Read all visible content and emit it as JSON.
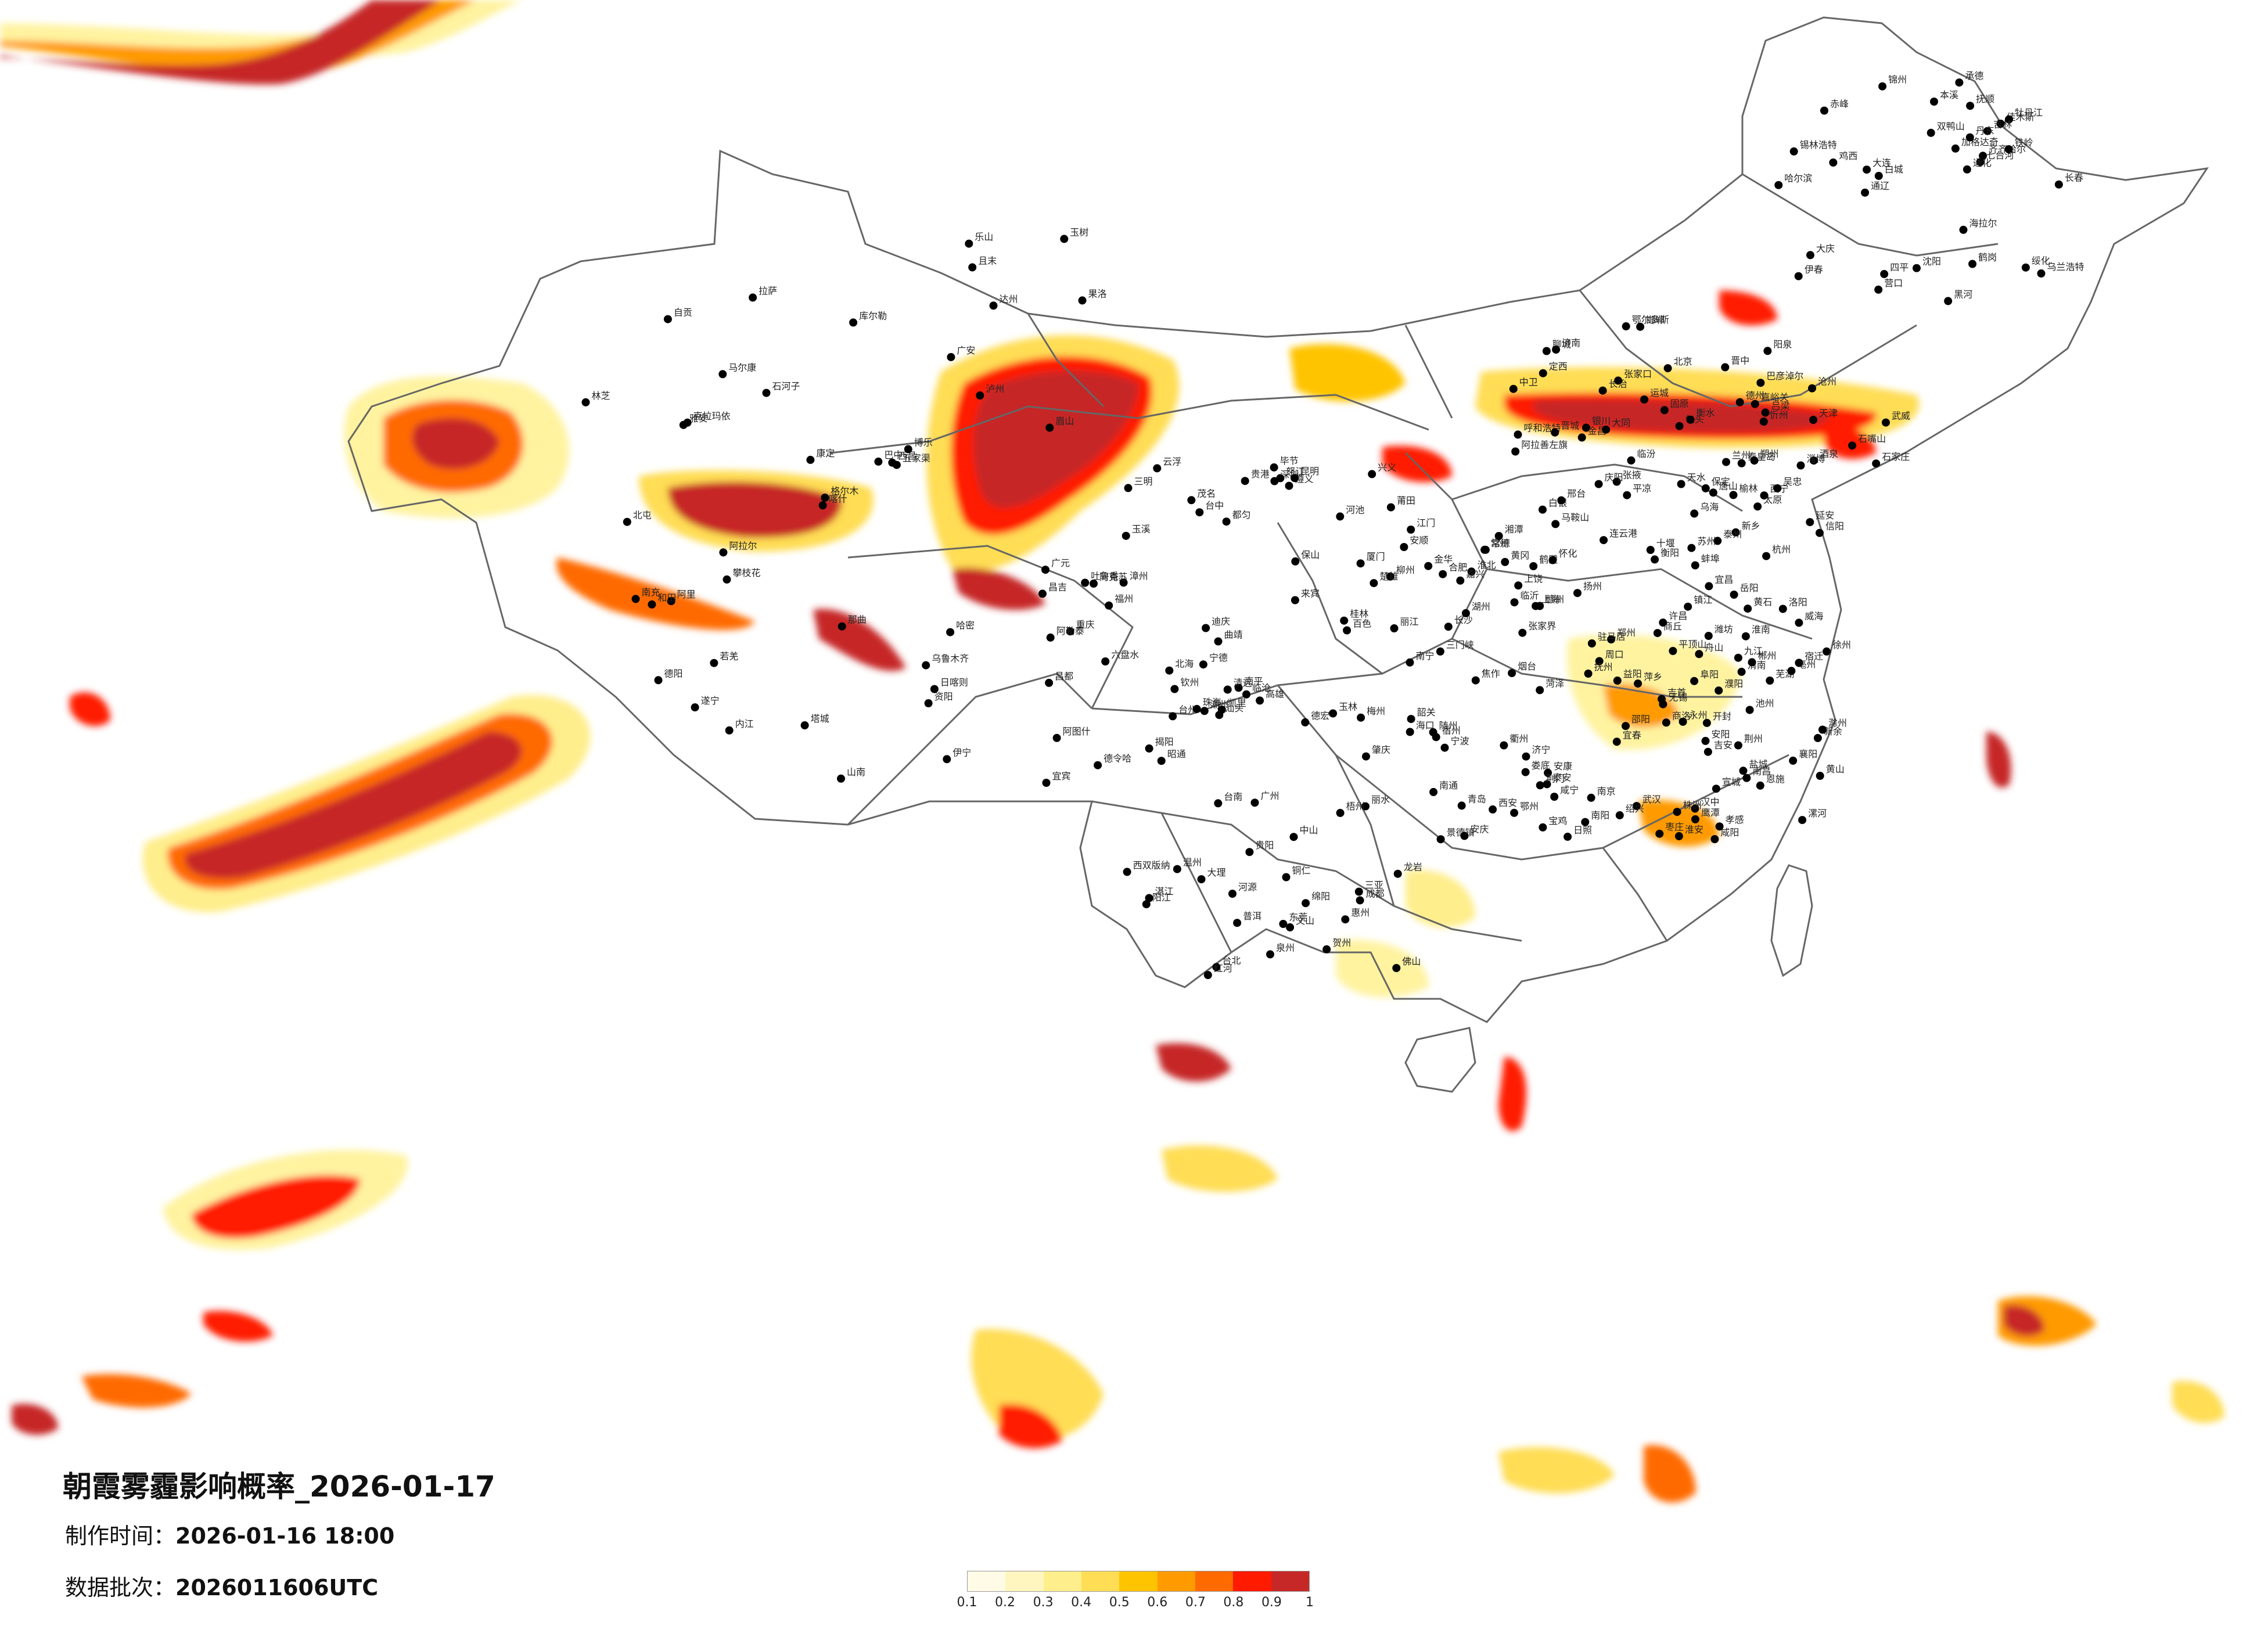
{
  "title": "朝霞雾霾影响概率_2026-01-17",
  "production_time": {
    "label": "制作时间：",
    "value": "2026-01-16 18:00"
  },
  "data_batch": {
    "label": "数据批次：",
    "value": "2026011606UTC"
  },
  "legend": {
    "colors": [
      "#fffbe6",
      "#fff6bf",
      "#ffee8c",
      "#ffdd55",
      "#ffc400",
      "#ff9a00",
      "#ff6a00",
      "#ff1a00",
      "#c62828"
    ],
    "ticks": [
      "0.1",
      "0.2",
      "0.3",
      "0.4",
      "0.5",
      "0.6",
      "0.7",
      "0.8",
      "0.9",
      "1"
    ]
  },
  "cities": [
    "加格达奇",
    "黑河",
    "海拉尔",
    "伊春",
    "鹤岗",
    "齐齐哈尔",
    "佳木斯",
    "双鸭山",
    "大庆",
    "绥化",
    "哈尔滨",
    "七台河",
    "鸡西",
    "乌兰浩特",
    "白城",
    "牡丹江",
    "锡林浩特",
    "通辽",
    "长春",
    "吉林",
    "四平",
    "铁岭",
    "沈阳",
    "抚顺",
    "本溪",
    "通化",
    "丹东",
    "大连",
    "营口",
    "锦州",
    "赤峰",
    "承德",
    "张家口",
    "北京",
    "天津",
    "唐山",
    "秦皇岛",
    "呼和浩特",
    "包头",
    "巴彦淖尔",
    "乌海",
    "银川",
    "石嘴山",
    "阿拉善左旗",
    "嘉峪关",
    "酒泉",
    "张掖",
    "武威",
    "金昌",
    "西宁",
    "兰州",
    "白银",
    "定西",
    "天水",
    "平凉",
    "庆阳",
    "固原",
    "中卫",
    "吴忠",
    "延安",
    "榆林",
    "鄂尔多斯",
    "大同",
    "朔州",
    "忻州",
    "太原",
    "阳泉",
    "晋中",
    "吕梁",
    "临汾",
    "运城",
    "长治",
    "晋城",
    "石家庄",
    "保定",
    "沧州",
    "衡水",
    "邢台",
    "邯郸",
    "德州",
    "聊城",
    "济南",
    "淄博",
    "潍坊",
    "烟台",
    "威海",
    "青岛",
    "日照",
    "临沂",
    "枣庄",
    "济宁",
    "泰安",
    "菏泽",
    "濮阳",
    "安阳",
    "鹤壁",
    "新乡",
    "焦作",
    "郑州",
    "开封",
    "商丘",
    "周口",
    "许昌",
    "漯河",
    "平顶山",
    "洛阳",
    "三门峡",
    "南阳",
    "信阳",
    "驻马店",
    "西安",
    "宝鸡",
    "咸阳",
    "渭南",
    "汉中",
    "安康",
    "商洛",
    "十堰",
    "襄阳",
    "随州",
    "荆门",
    "孝感",
    "武汉",
    "黄冈",
    "鄂州",
    "黄石",
    "咸宁",
    "荆州",
    "宜昌",
    "恩施",
    "岳阳",
    "常德",
    "张家界",
    "益阳",
    "长沙",
    "株洲",
    "湘潭",
    "娄底",
    "邵阳",
    "衡阳",
    "郴州",
    "永州",
    "怀化",
    "吉首",
    "九江",
    "景德镇",
    "南昌",
    "上饶",
    "鹰潭",
    "抚州",
    "新余",
    "宜春",
    "萍乡",
    "吉安",
    "赣州",
    "合肥",
    "芜湖",
    "马鞍山",
    "安庆",
    "池州",
    "黄山",
    "宣城",
    "滁州",
    "蚌埠",
    "淮南",
    "阜阳",
    "亳州",
    "宿州",
    "淮北",
    "徐州",
    "连云港",
    "宿迁",
    "淮安",
    "盐城",
    "扬州",
    "泰州",
    "南通",
    "南京",
    "镇江",
    "常州",
    "无锡",
    "苏州",
    "上海",
    "嘉兴",
    "湖州",
    "杭州",
    "绍兴",
    "宁波",
    "舟山",
    "金华",
    "衢州",
    "丽水",
    "台州",
    "温州",
    "福州",
    "宁德",
    "南平",
    "三明",
    "莆田",
    "泉州",
    "厦门",
    "漳州",
    "龙岩",
    "台北",
    "台中",
    "台南",
    "高雄",
    "广州",
    "深圳",
    "东莞",
    "惠州",
    "汕头",
    "揭阳",
    "潮州",
    "梅州",
    "河源",
    "韶关",
    "清远",
    "肇庆",
    "佛山",
    "江门",
    "中山",
    "珠海",
    "阳江",
    "茂名",
    "湛江",
    "云浮",
    "桂林",
    "柳州",
    "南宁",
    "钦州",
    "北海",
    "玉林",
    "梧州",
    "贺州",
    "百色",
    "河池",
    "来宾",
    "贵港",
    "海口",
    "三亚",
    "贵阳",
    "遵义",
    "安顺",
    "六盘水",
    "都匀",
    "凯里",
    "铜仁",
    "毕节",
    "兴义",
    "昆明",
    "曲靖",
    "玉溪",
    "红河",
    "文山",
    "普洱",
    "西双版纳",
    "临沧",
    "大理",
    "丽江",
    "保山",
    "德宏",
    "怒江",
    "迪庆",
    "楚雄",
    "昭通",
    "成都",
    "绵阳",
    "德阳",
    "南充",
    "达州",
    "巴中",
    "广元",
    "遂宁",
    "内江",
    "资阳",
    "乐山",
    "宜宾",
    "泸州",
    "自贡",
    "雅安",
    "眉山",
    "广安",
    "攀枝花",
    "西昌",
    "康定",
    "马尔康",
    "重庆",
    "拉萨",
    "日喀则",
    "那曲",
    "林芝",
    "山南",
    "昌都",
    "阿里",
    "格尔木",
    "德令哈",
    "玉树",
    "果洛",
    "乌鲁木齐",
    "昌吉",
    "石河子",
    "吐鲁番",
    "哈密",
    "克拉玛依",
    "伊宁",
    "博乐",
    "塔城",
    "阿勒泰",
    "库尔勒",
    "阿克苏",
    "喀什",
    "和田",
    "阿图什",
    "若羌",
    "且末",
    "阿拉尔",
    "五家渠",
    "北屯"
  ]
}
